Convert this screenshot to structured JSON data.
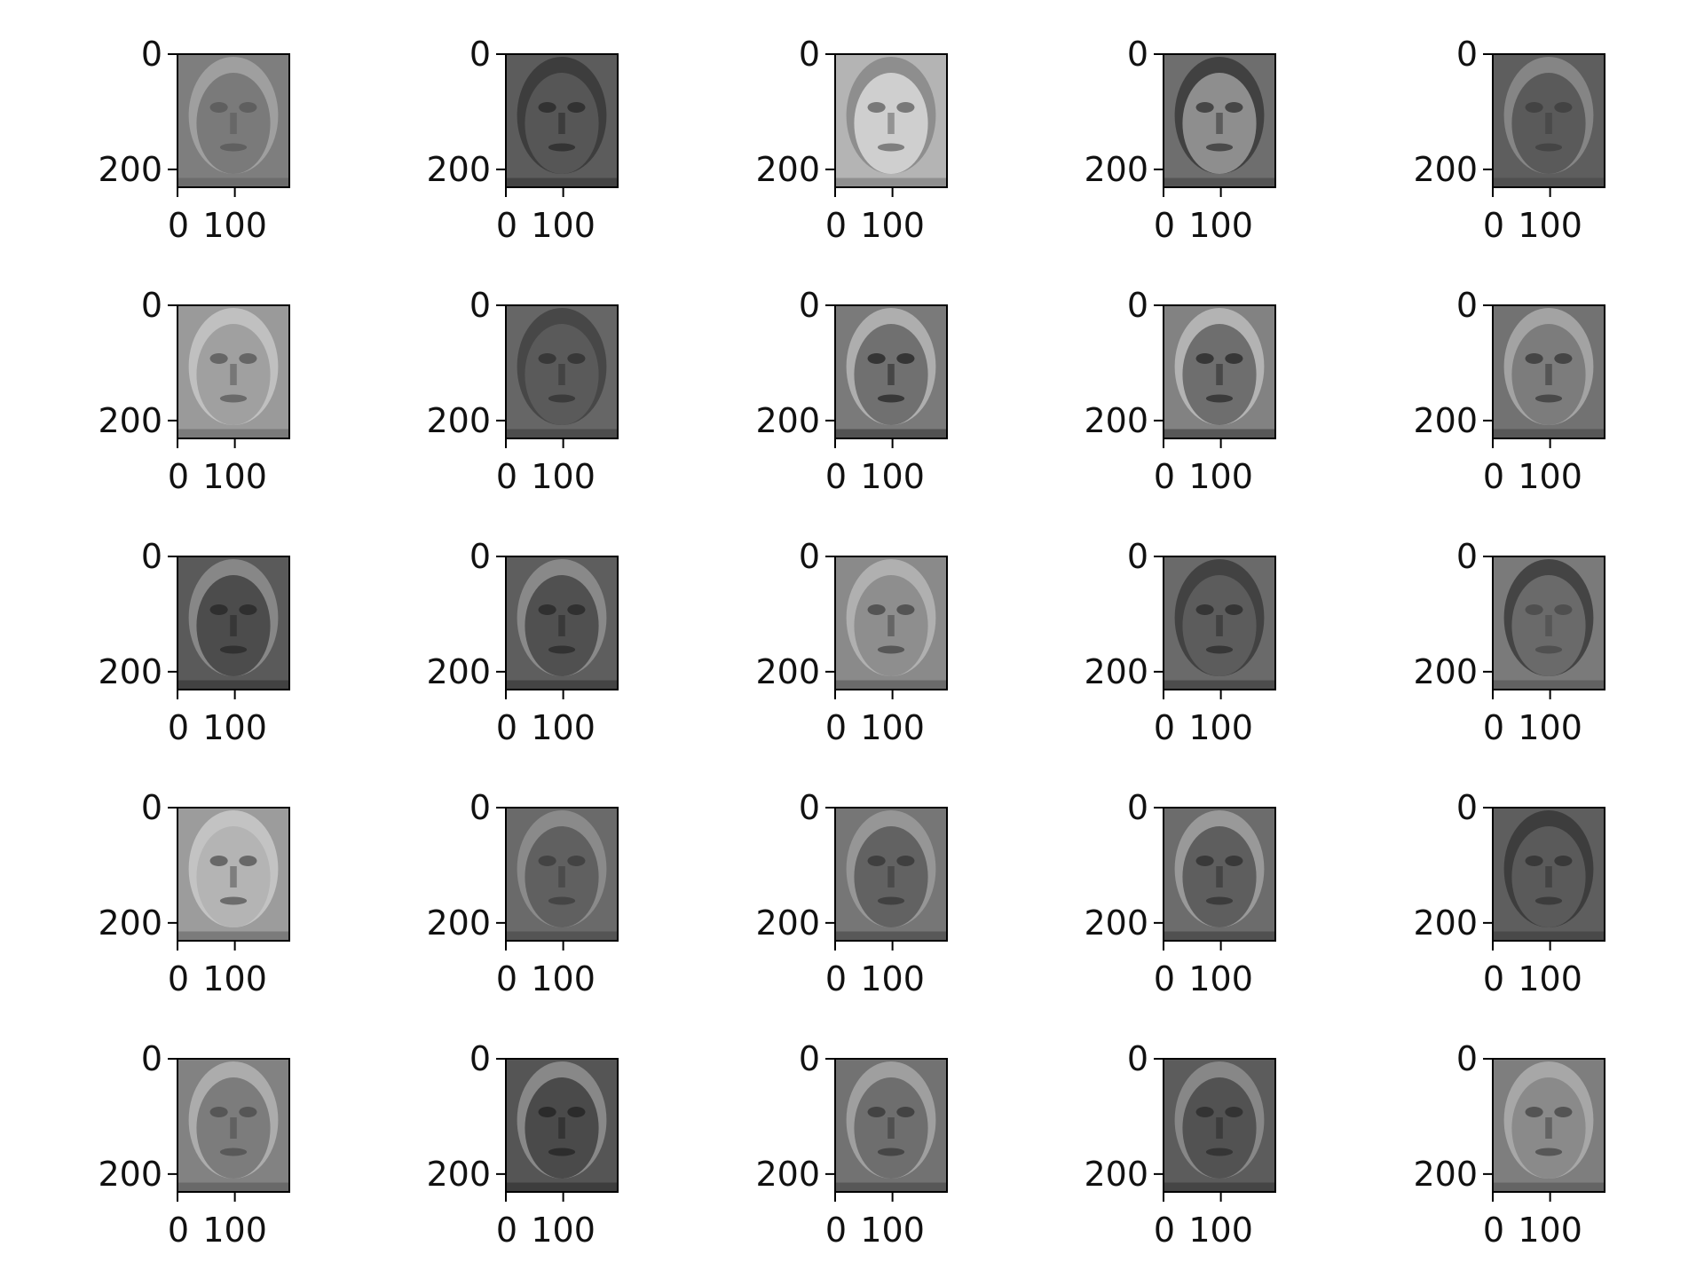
{
  "figure": {
    "rows": 5,
    "cols": 5,
    "y_ticks": [
      "0",
      "200"
    ],
    "x_ticks": [
      "0",
      "100"
    ]
  },
  "panels": [
    {
      "tone": "#7e7e7e",
      "hair": "#a3a3a3",
      "face": "#7a7a7a",
      "features": "#5a5a5a"
    },
    {
      "tone": "#5c5c5c",
      "hair": "#3a3a3a",
      "face": "#565656",
      "features": "#2c2c2c"
    },
    {
      "tone": "#b4b4b4",
      "hair": "#8a8a8a",
      "face": "#cfcfcf",
      "features": "#6a6a6a"
    },
    {
      "tone": "#6e6e6e",
      "hair": "#3c3c3c",
      "face": "#8e8e8e",
      "features": "#3a3a3a"
    },
    {
      "tone": "#5e5e5e",
      "hair": "#8a8a8a",
      "face": "#5a5a5a",
      "features": "#404040"
    },
    {
      "tone": "#9a9a9a",
      "hair": "#c4c4c4",
      "face": "#a0a0a0",
      "features": "#5c5c5c"
    },
    {
      "tone": "#666666",
      "hair": "#444444",
      "face": "#5a5a5a",
      "features": "#333333"
    },
    {
      "tone": "#7a7a7a",
      "hair": "#b4b4b4",
      "face": "#707070",
      "features": "#2a2a2a"
    },
    {
      "tone": "#828282",
      "hair": "#b8b8b8",
      "face": "#6e6e6e",
      "features": "#2e2e2e"
    },
    {
      "tone": "#727272",
      "hair": "#a8a8a8",
      "face": "#7c7c7c",
      "features": "#3c3c3c"
    },
    {
      "tone": "#5a5a5a",
      "hair": "#8c8c8c",
      "face": "#4c4c4c",
      "features": "#2a2a2a"
    },
    {
      "tone": "#5e5e5e",
      "hair": "#8e8e8e",
      "face": "#505050",
      "features": "#2a2a2a"
    },
    {
      "tone": "#8a8a8a",
      "hair": "#b4b4b4",
      "face": "#8e8e8e",
      "features": "#4a4a4a"
    },
    {
      "tone": "#6a6a6a",
      "hair": "#3e3e3e",
      "face": "#5c5c5c",
      "features": "#2e2e2e"
    },
    {
      "tone": "#7a7a7a",
      "hair": "#3e3e3e",
      "face": "#6a6a6a",
      "features": "#4a4a4a"
    },
    {
      "tone": "#9c9c9c",
      "hair": "#c8c8c8",
      "face": "#b4b4b4",
      "features": "#5a5a5a"
    },
    {
      "tone": "#6a6a6a",
      "hair": "#8e8e8e",
      "face": "#606060",
      "features": "#3e3e3e"
    },
    {
      "tone": "#767676",
      "hair": "#9a9a9a",
      "face": "#626262",
      "features": "#3a3a3a"
    },
    {
      "tone": "#6c6c6c",
      "hair": "#9e9e9e",
      "face": "#5e5e5e",
      "features": "#333333"
    },
    {
      "tone": "#5e5e5e",
      "hair": "#3a3a3a",
      "face": "#5a5a5a",
      "features": "#343434"
    },
    {
      "tone": "#828282",
      "hair": "#b0b0b0",
      "face": "#7c7c7c",
      "features": "#505050"
    },
    {
      "tone": "#555555",
      "hair": "#8e8e8e",
      "face": "#4a4a4a",
      "features": "#262626"
    },
    {
      "tone": "#727272",
      "hair": "#a4a4a4",
      "face": "#6e6e6e",
      "features": "#3c3c3c"
    },
    {
      "tone": "#5c5c5c",
      "hair": "#8c8c8c",
      "face": "#525252",
      "features": "#2e2e2e"
    },
    {
      "tone": "#7e7e7e",
      "hair": "#acacac",
      "face": "#8a8a8a",
      "features": "#4a4a4a"
    }
  ]
}
